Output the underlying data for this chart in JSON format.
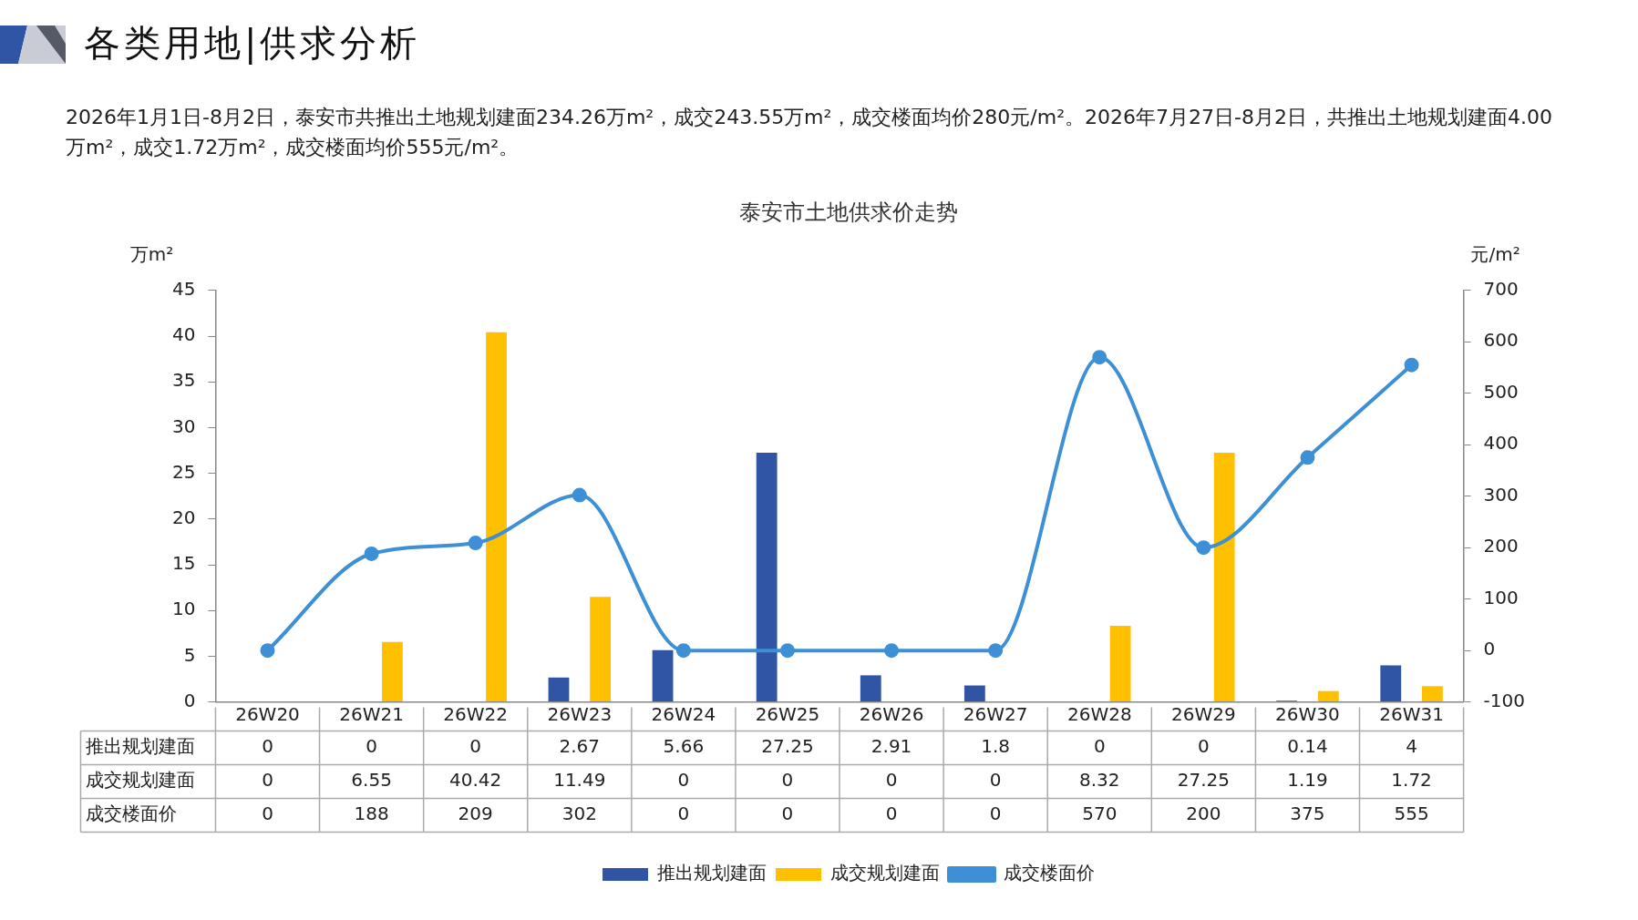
{
  "chart_data": {
    "type": "bar",
    "title": "泰安市土地供求价走势",
    "annotations": [
      "各类用地|供求分析",
      "2026年1月1日-8月2日，泰安市共推出土地规划建面234.26万m²，成交243.55万m²，成交楼面均价280元/m²。2026年7月27日-8月2日，共推出土地规划建面4.00万m²，成交1.72万m²，成交楼面均价555元/m²。"
    ],
    "ylabel": "万m²",
    "y2label": "元/m²",
    "categories": [
      "26W20",
      "26W21",
      "26W22",
      "26W23",
      "26W24",
      "26W25",
      "26W26",
      "26W27",
      "26W28",
      "26W29",
      "26W30",
      "26W31"
    ],
    "series": [
      {
        "name": "推出规划建面",
        "color": "#2f55a4",
        "values": [
          0,
          0,
          0,
          2.67,
          5.66,
          27.25,
          2.91,
          1.8,
          0,
          0,
          0.14,
          4
        ]
      },
      {
        "name": "成交规划建面",
        "color": "#ffc000",
        "values": [
          0,
          6.55,
          40.42,
          11.49,
          0,
          0,
          0,
          0,
          8.32,
          27.25,
          1.19,
          1.72
        ]
      },
      {
        "name": "成交楼面价",
        "type": "line",
        "axis": "y2",
        "color": "#3d8fd6",
        "marker": "circle",
        "values": [
          0,
          188,
          209,
          302,
          0,
          0,
          0,
          0,
          570,
          200,
          375,
          555
        ]
      }
    ],
    "ylim": [
      0,
      45
    ],
    "yticks": [
      0,
      5,
      10,
      15,
      20,
      25,
      30,
      35,
      40,
      45
    ],
    "y2lim": [
      -100,
      700
    ],
    "y2ticks": [
      -100,
      0,
      100,
      200,
      300,
      400,
      500,
      600,
      700
    ],
    "data_labels": true,
    "legend": "bottom",
    "grid": false
  }
}
